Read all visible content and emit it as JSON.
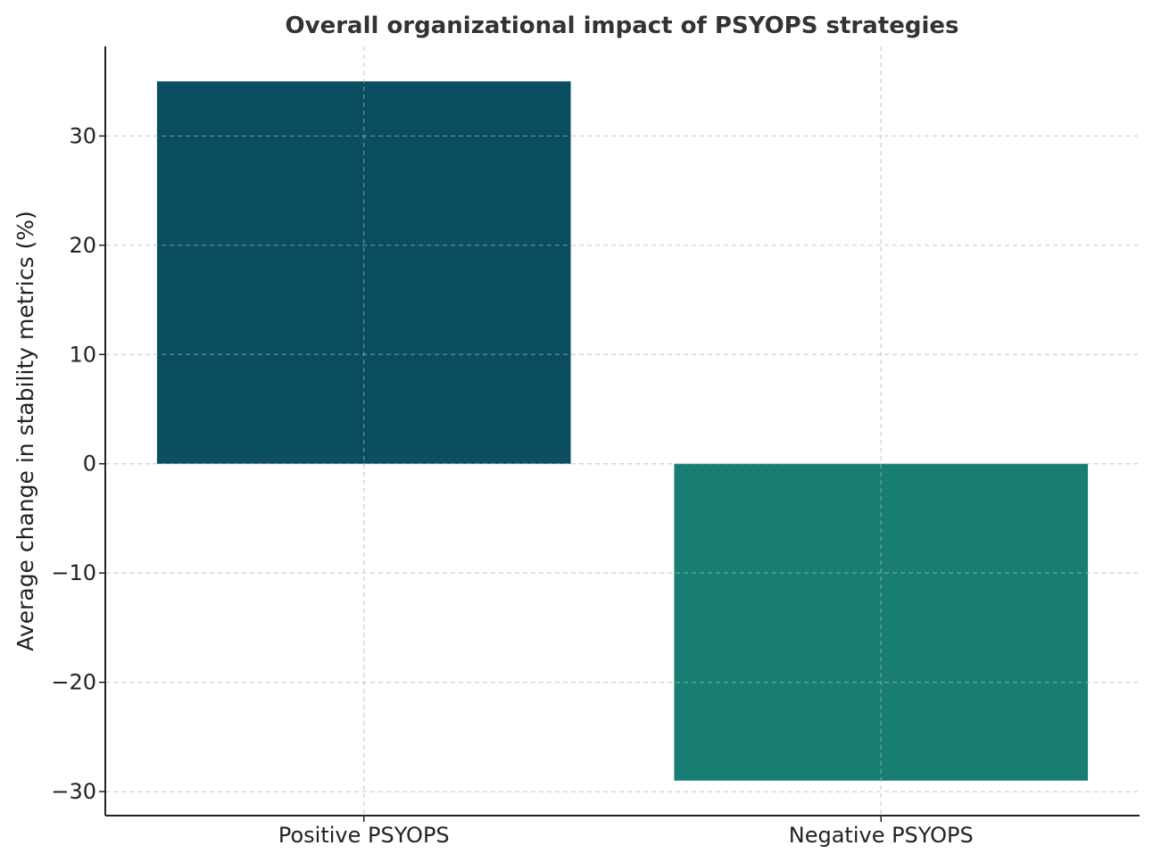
{
  "chart_data": {
    "type": "bar",
    "title": "Overall organizational impact of PSYOPS strategies",
    "xlabel": "",
    "ylabel": "Average change in stability metrics (%)",
    "categories": [
      "Positive PSYOPS",
      "Negative PSYOPS"
    ],
    "values": [
      35,
      -29
    ],
    "colors": [
      "#0b4d61",
      "#187e74"
    ],
    "ylim": [
      -32.2,
      38.2
    ],
    "yticks": [
      -30,
      -20,
      -10,
      0,
      10,
      20,
      30
    ],
    "ytick_labels": [
      "−30",
      "−20",
      "−10",
      "0",
      "10",
      "20",
      "30"
    ],
    "grid": true
  }
}
